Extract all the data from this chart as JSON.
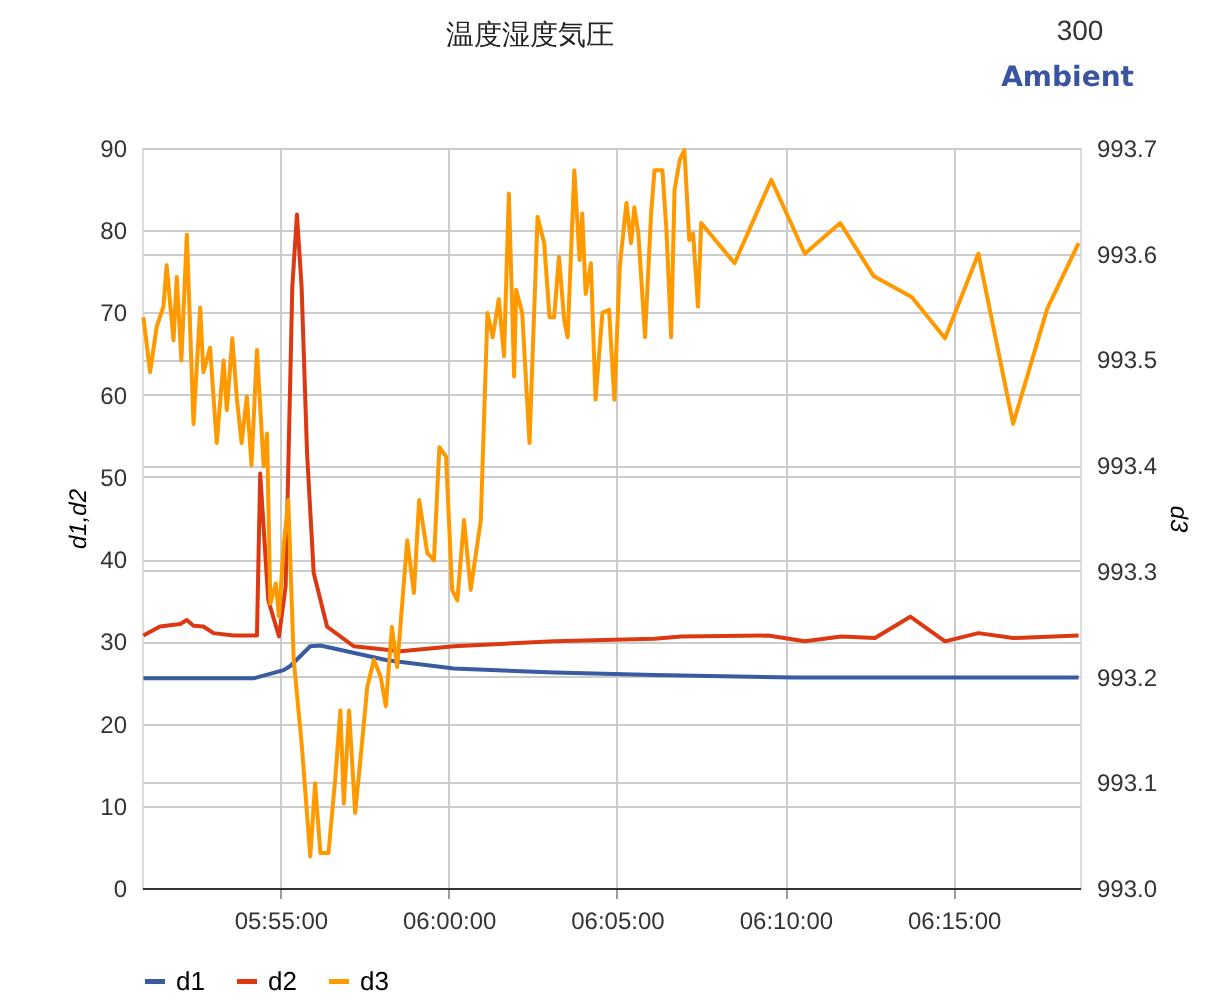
{
  "chart_data": {
    "type": "line",
    "title": "温度湿度気圧",
    "subtitle": "Ambient",
    "annotations": [
      "300"
    ],
    "ylabel": "d1,d2",
    "y2label": "d3",
    "xlim": [
      5.8482,
      6.3125
    ],
    "xticks": [
      {
        "value": 5.9167,
        "label": "05:55:00"
      },
      {
        "value": 6,
        "label": "06:00:00"
      },
      {
        "value": 6.0833,
        "label": "06:05:00"
      },
      {
        "value": 6.1667,
        "label": "06:10:00"
      },
      {
        "value": 6.25,
        "label": "06:15:00"
      }
    ],
    "ylim": [
      0,
      90
    ],
    "yticks": [
      0,
      10,
      20,
      30,
      40,
      50,
      60,
      70,
      80,
      90
    ],
    "y2lim": [
      993.0,
      993.7
    ],
    "y2ticks": [
      {
        "value": 993.0,
        "label": "993.0"
      },
      {
        "value": 993.1,
        "label": "993.1"
      },
      {
        "value": 993.2,
        "label": "993.2"
      },
      {
        "value": 993.3,
        "label": "993.3"
      },
      {
        "value": 993.4,
        "label": "993.4"
      },
      {
        "value": 993.5,
        "label": "993.5"
      },
      {
        "value": 993.6,
        "label": "993.6"
      },
      {
        "value": 993.7,
        "label": "993.7"
      }
    ],
    "grid": true,
    "legend": "bottom",
    "marker": "none",
    "line_style": "solid",
    "series": [
      {
        "name": "d1",
        "color": "#3a5ba0",
        "x": [
          5.8489,
          5.9034,
          5.9183,
          5.9216,
          5.9315,
          5.9365,
          5.9696,
          6.0026,
          6.0522,
          6.1019,
          6.1713,
          6.3118
        ],
        "values": [
          25.5,
          25.5,
          26.5,
          27.0,
          29.4,
          29.5,
          27.7,
          26.7,
          26.2,
          25.9,
          25.6,
          25.6
        ]
      },
      {
        "name": "d2",
        "color": "#dc3912",
        "x": [
          5.8489,
          5.8571,
          5.8671,
          5.8704,
          5.8737,
          5.8786,
          5.8836,
          5.8935,
          5.9051,
          5.9067,
          5.9107,
          5.916,
          5.9193,
          5.9226,
          5.9249,
          5.9272,
          5.9299,
          5.9332,
          5.9398,
          5.953,
          5.9762,
          6.0026,
          6.0522,
          6.1019,
          6.1151,
          6.1581,
          6.1763,
          6.1944,
          6.211,
          6.2285,
          6.2457,
          6.2622,
          6.2794,
          6.3118
        ],
        "values": [
          30.7,
          31.8,
          32.1,
          32.6,
          31.9,
          31.8,
          31.0,
          30.7,
          30.7,
          50.4,
          35.0,
          30.6,
          36.7,
          73.1,
          81.9,
          73.1,
          52.9,
          38.3,
          31.8,
          29.4,
          28.8,
          29.4,
          30.0,
          30.3,
          30.6,
          30.7,
          30.0,
          30.6,
          30.4,
          33.0,
          30.0,
          31.0,
          30.4,
          30.7
        ]
      },
      {
        "name": "d3",
        "color": "#ff9900",
        "axis": "y2",
        "x": [
          5.8489,
          5.8522,
          5.8555,
          5.8588,
          5.8604,
          5.8638,
          5.8654,
          5.8677,
          5.8704,
          5.8737,
          5.877,
          5.8786,
          5.8819,
          5.8852,
          5.8886,
          5.8902,
          5.8929,
          5.8952,
          5.8975,
          5.9001,
          5.9024,
          5.9051,
          5.9084,
          5.9101,
          5.9117,
          5.9144,
          5.916,
          5.9183,
          5.9206,
          5.9233,
          5.9272,
          5.9315,
          5.9339,
          5.9365,
          5.9405,
          5.9438,
          5.9464,
          5.9481,
          5.9507,
          5.9537,
          5.9563,
          5.9597,
          5.963,
          5.9663,
          5.9689,
          5.9719,
          5.9745,
          5.9795,
          5.9828,
          5.9854,
          5.9894,
          5.9927,
          5.9954,
          5.9987,
          6.0017,
          6.0043,
          6.0076,
          6.0109,
          6.0159,
          6.0192,
          6.0218,
          6.0248,
          6.0274,
          6.0298,
          6.0324,
          6.0334,
          6.0364,
          6.04,
          6.044,
          6.0473,
          6.0499,
          6.0522,
          6.0546,
          6.0572,
          6.0589,
          6.0622,
          6.0648,
          6.0661,
          6.0678,
          6.0704,
          6.0727,
          6.0761,
          6.0794,
          6.082,
          6.0847,
          6.088,
          6.0903,
          6.0919,
          6.0939,
          6.0972,
          6.1002,
          6.1019,
          6.1058,
          6.1078,
          6.1101,
          6.1118,
          6.1144,
          6.1167,
          6.1191,
          6.121,
          6.1234,
          6.125,
          6.1415,
          6.1597,
          6.1763,
          6.1938,
          6.2103,
          6.2292,
          6.2457,
          6.2622,
          6.2794,
          6.2963,
          6.3118
        ],
        "values": [
          993.54,
          993.488,
          993.531,
          993.55,
          993.589,
          993.518,
          993.578,
          993.499,
          993.618,
          993.439,
          993.549,
          993.488,
          993.511,
          993.421,
          993.499,
          993.452,
          993.52,
          993.462,
          993.421,
          993.465,
          993.4,
          993.509,
          993.399,
          993.43,
          993.269,
          993.288,
          993.257,
          993.323,
          993.367,
          993.216,
          993.137,
          993.03,
          993.099,
          993.033,
          993.033,
          993.102,
          993.168,
          993.08,
          993.168,
          993.071,
          993.121,
          993.19,
          993.216,
          993.2,
          993.172,
          993.247,
          993.209,
          993.329,
          993.279,
          993.367,
          993.317,
          993.31,
          993.417,
          993.408,
          993.282,
          993.272,
          993.348,
          993.282,
          993.348,
          993.544,
          993.521,
          993.557,
          993.503,
          993.657,
          993.484,
          993.566,
          993.544,
          993.421,
          993.635,
          993.61,
          993.54,
          993.54,
          993.597,
          993.537,
          993.521,
          993.679,
          993.594,
          993.638,
          993.562,
          993.591,
          993.462,
          993.544,
          993.547,
          993.462,
          993.588,
          993.648,
          993.61,
          993.644,
          993.619,
          993.521,
          993.638,
          993.679,
          993.679,
          993.622,
          993.521,
          993.66,
          993.689,
          993.698,
          993.613,
          993.619,
          993.55,
          993.629,
          993.591,
          993.67,
          993.6,
          993.629,
          993.579,
          993.559,
          993.52,
          993.6,
          993.439,
          993.548,
          993.61
        ]
      }
    ]
  }
}
